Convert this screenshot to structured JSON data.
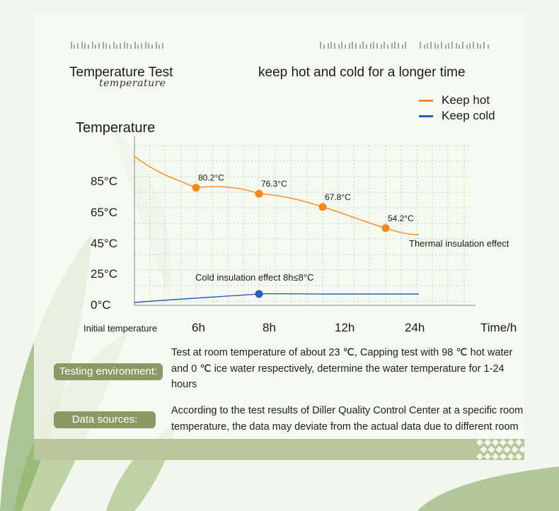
{
  "header": {
    "title_left": "Temperature Test",
    "title_script": "temperature",
    "title_right": "keep hot and cold for a longer time"
  },
  "colors": {
    "hot": "#f28a1b",
    "cold": "#2a5fb8",
    "pill_bg": "#8b9a64",
    "band": "#b9c59a"
  },
  "info": {
    "testing_label": "Testing environment:",
    "testing_text": "Test at room temperature of about 23 ℃, Capping test with 98 ℃ hot water and 0 ℃ ice water respectively, determine the water temperature for 1-24 hours",
    "sources_label": "Data sources:",
    "sources_text": "According to the test results of Diller Quality Control Center at a specific room temperature, the data may deviate from the actual data due to different room"
  },
  "chart_data": {
    "type": "line",
    "ylabel": "Temperature",
    "xlabel": "Time/h",
    "x_origin_label": "Initial temperature",
    "categories": [
      "6h",
      "8h",
      "12h",
      "24h"
    ],
    "y_ticks": [
      "85°C",
      "65°C",
      "45°C",
      "25°C",
      "0°C"
    ],
    "series": [
      {
        "name": "Keep hot",
        "color": "#f28a1b",
        "points": [
          {
            "x": "6h",
            "value": 80.2,
            "label": "80.2°C"
          },
          {
            "x": "8h",
            "value": 76.3,
            "label": "76.3°C"
          },
          {
            "x": "12h",
            "value": 67.8,
            "label": "67.8°C"
          },
          {
            "x": "24h",
            "value": 54.2,
            "label": "54.2°C"
          }
        ]
      },
      {
        "name": "Keep cold",
        "color": "#2a5fb8",
        "points": [
          {
            "x": "8h",
            "value": 8
          }
        ]
      }
    ],
    "annotations": {
      "hot": "Thermal insulation effect",
      "cold": "Cold insulation effect 8h≤8°C"
    },
    "grid": true,
    "legend_position": "top-right"
  }
}
